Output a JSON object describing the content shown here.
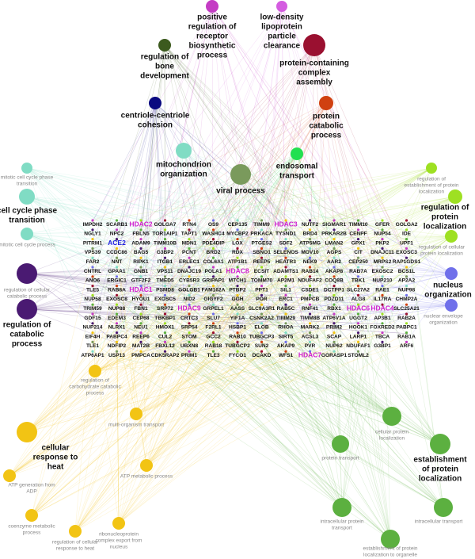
{
  "terms": [
    {
      "label": [
        "positive",
        "regulation of",
        "receptor",
        "biosynthetic",
        "process"
      ]
    },
    {
      "label": [
        "low-density",
        "lipoprotein",
        "particle",
        "clearance"
      ]
    },
    {
      "label": [
        "protein-containing",
        "complex",
        "assembly"
      ]
    },
    {
      "label": [
        "regulation of",
        "bone",
        "development"
      ]
    },
    {
      "label": [
        "centriole-centriole",
        "cohesion"
      ]
    },
    {
      "label": [
        "protein",
        "catabolic",
        "process"
      ]
    },
    {
      "label": [
        "mitochondrion",
        "organization"
      ]
    },
    {
      "label": [
        "viral process"
      ]
    },
    {
      "label": [
        "endosomal",
        "transport"
      ]
    },
    {
      "label": [
        "mitotic cell cycle phase",
        "transition"
      ]
    },
    {
      "label": [
        "cell cycle phase",
        "transition"
      ]
    },
    {
      "label": [
        "mitotic cell cycle process"
      ]
    },
    {
      "label": [
        "regulation of cellular",
        "catabolic process"
      ]
    },
    {
      "label": [
        "regulation of",
        "catabolic",
        "process"
      ]
    },
    {
      "label": [
        "regulation of",
        "establishment of protein",
        "localization"
      ]
    },
    {
      "label": [
        "regulation of",
        "protein",
        "localization"
      ]
    },
    {
      "label": [
        "regulation of cellular",
        "protein localization"
      ]
    },
    {
      "label": [
        "nucleus",
        "organization"
      ]
    },
    {
      "label": [
        "nuclear envelope",
        "organization"
      ]
    },
    {
      "label": [
        "regulation of",
        "carbohydrate catabolic",
        "process"
      ]
    },
    {
      "label": [
        "cellular",
        "response to",
        "heat"
      ]
    },
    {
      "label": [
        "multi-organism transport"
      ]
    },
    {
      "label": [
        "ATP generation from",
        "ADP"
      ]
    },
    {
      "label": [
        "ATP metabolic process"
      ]
    },
    {
      "label": [
        "coenzyme metabolic",
        "process"
      ]
    },
    {
      "label": [
        "ribonucleoprotein",
        "complex export from",
        "nucleus"
      ]
    },
    {
      "label": [
        "regulation of cellular",
        "response to heat"
      ]
    },
    {
      "label": [
        "cellular protein",
        "localization"
      ]
    },
    {
      "label": [
        "protein transport"
      ]
    },
    {
      "label": [
        "establishment",
        "of protein",
        "localization"
      ]
    },
    {
      "label": [
        "intracellular protein",
        "transport"
      ]
    },
    {
      "label": [
        "intracellular transport"
      ]
    },
    {
      "label": [
        "establishment of protein",
        "localization to organelle"
      ]
    }
  ],
  "genes": [
    [
      "IMPDH2",
      "SCARB1",
      "HDAC2",
      "GOLGA7",
      "RTN4",
      "OS9",
      "CEP135",
      "TIMM9",
      "HDAC3",
      "NUTF2",
      "SIGMAR1",
      "TIMM10",
      "GFER",
      "GOLGA2"
    ],
    [
      "NGLY1",
      "NPC2",
      "FBLN5",
      "TOR1AIP1",
      "TAPT1",
      "WASHC4",
      "MYCBP2",
      "PRKACA",
      "TYSND1",
      "BRD4",
      "PRKAR2B",
      "CENPF",
      "NUP54",
      "IDE"
    ],
    [
      "PITRM1",
      "ACE2",
      "ADAM9",
      "TIMM10B",
      "MDN1",
      "PDE4DIP",
      "LOX",
      "PTGES2",
      "SDF2",
      "ATP5MG",
      "LMAN2",
      "GPX1",
      "PKP2",
      "UPF1"
    ],
    [
      "VPS39",
      "CCDC86",
      "BAG5",
      "G3BP2",
      "PCNT",
      "BRD2",
      "RDX",
      "SBNO1",
      "SELENOS",
      "MOV10",
      "AGPS",
      "CIT",
      "DNAJC11",
      "EXOSC3"
    ],
    [
      "FAR2",
      "NNT",
      "RIPK1",
      "ITGB1",
      "ERLEC1",
      "COL6A1",
      "ATP1B1",
      "REEP5",
      "HEATR3",
      "NEK9",
      "AAR2",
      "CEP250",
      "MRPS2",
      "RAP1GDS1"
    ],
    [
      "CNTRL",
      "GPAA1",
      "GNB1",
      "VPS11",
      "DNAJC19",
      "POLA1",
      "HDAC8",
      "ECSIT",
      "ADAMTS1",
      "RAB14",
      "AKAP8",
      "RAB7A",
      "EXOSC2",
      "BCS1L"
    ],
    [
      "ANO6",
      "ERGIC1",
      "GTF2F2",
      "TMED5",
      "CYB5R3",
      "GRIPAP1",
      "MTCH1",
      "TOMM70",
      "AP2M1",
      "NDUFAF2",
      "COQ8B",
      "TBK1",
      "NUP210",
      "AP2A2"
    ],
    [
      "TLE5",
      "RAB8A",
      "HDAC1",
      "PSMD8",
      "GOLGB1",
      "FAM162A",
      "PTBP2",
      "PPT1",
      "SIL1",
      "CSDE1",
      "DCTPP1",
      "SLC27A2",
      "RAE1",
      "NUP98"
    ],
    [
      "NUP58",
      "EXOSC8",
      "HYOU1",
      "EXOSC5",
      "NID2",
      "GIGYF2",
      "GGH",
      "POR",
      "ERC1",
      "PMPCB",
      "PDZD11",
      "ALG8",
      "IL17RA",
      "CHMP2A"
    ],
    [
      "TRIM59",
      "NUP88",
      "FBN1",
      "SRP72",
      "HDAC9",
      "GRPEL1",
      "AASS",
      "SLC9A3R1",
      "RAB5C",
      "RNF41",
      "RBX1",
      "HDAC6",
      "HDAC4",
      "SLC25A21"
    ],
    [
      "GDF15",
      "EDEM3",
      "CEP68",
      "TBKBP1",
      "CRTC3",
      "SLU7",
      "YIF1A",
      "CSNK2A2",
      "TIMM29",
      "TIMM8B",
      "ATP6V1A",
      "UGGT2",
      "AP3B1",
      "RAB2A"
    ],
    [
      "NUP214",
      "NLRX1",
      "NEU1",
      "HMOX1",
      "SRP54",
      "F2RL1",
      "HSBP1",
      "ELOB",
      "RHOA",
      "MARK2",
      "PRIM2",
      "HOOK1",
      "FOXRED2",
      "PABPC1"
    ],
    [
      "EIF4H",
      "PABPC4",
      "REEP6",
      "CUL2",
      "STOM",
      "GCC2",
      "RAB10",
      "TUBGCP3",
      "SIRT5",
      "ACSL3",
      "SCAP",
      "LARP1",
      "TBCA",
      "RAB1A"
    ],
    [
      "TLE1",
      "NDFIP2",
      "MAT2B",
      "FBXL12",
      "UBXN8",
      "RAB18",
      "TUBGCP2",
      "SUN2",
      "AKAP9",
      "PVR",
      "NUP62",
      "NDUFAF1",
      "G3BP1",
      "ARF6"
    ],
    [
      "ATP6AP1",
      "USP13",
      "PMPCA",
      "CDK5RAP2",
      "PRIM1",
      "TLE3",
      "FYCO1",
      "DCAKD",
      "WFS1",
      "HDAC7",
      "GORASP1",
      "STOML2"
    ]
  ]
}
